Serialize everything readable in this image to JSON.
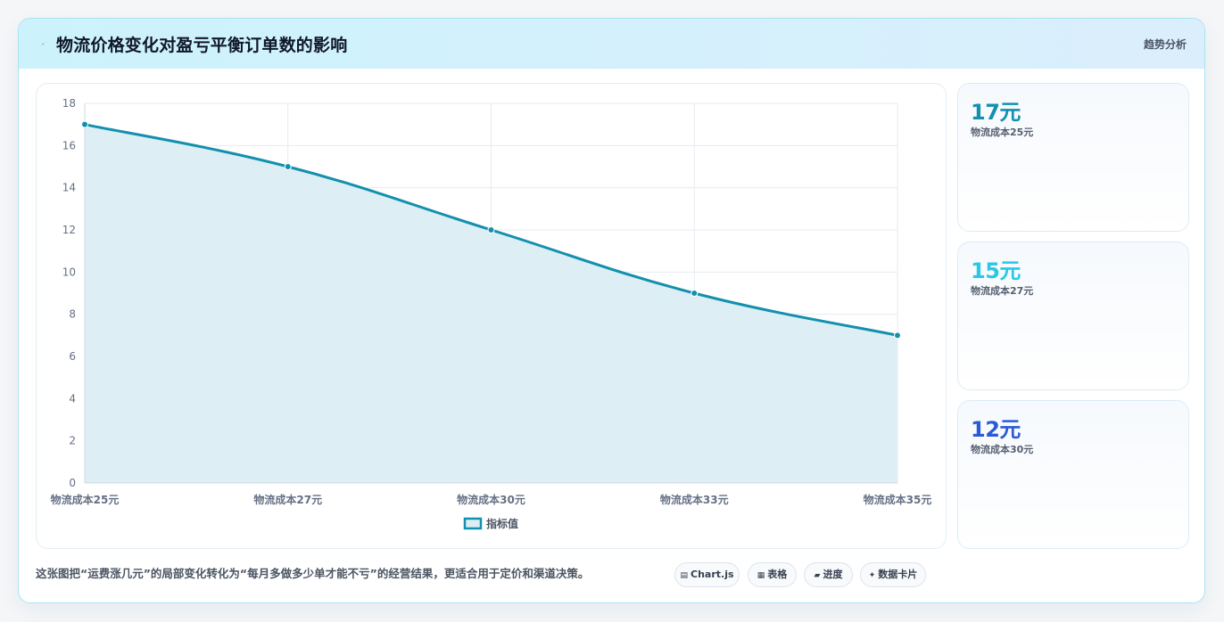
{
  "header": {
    "title": "物流价格变化对盈亏平衡订单数的影响",
    "icon": "lightning-icon",
    "right_label": "趋势分析"
  },
  "colors": {
    "line": "#1390ad",
    "fill": "#dcedf4",
    "grid": "#e6ebf0",
    "axis_text": "#667085",
    "card1_value": "#1390ad",
    "card2_value": "#27c9e6",
    "card3_value": "#2a5bd7"
  },
  "chart_data": {
    "type": "line",
    "fill": true,
    "categories": [
      "物流成本25元",
      "物流成本27元",
      "物流成本30元",
      "物流成本33元",
      "物流成本35元"
    ],
    "series": [
      {
        "name": "指标值",
        "values": [
          17,
          15,
          12,
          9,
          7
        ]
      }
    ],
    "ylim": [
      0,
      18
    ],
    "yticks": [
      0,
      2,
      4,
      6,
      8,
      10,
      12,
      14,
      16,
      18
    ],
    "grid": true,
    "legend_position": "bottom"
  },
  "side_cards": [
    {
      "value": "17元",
      "label": "物流成本25元"
    },
    {
      "value": "15元",
      "label": "物流成本27元"
    },
    {
      "value": "12元",
      "label": "物流成本30元"
    }
  ],
  "footer": {
    "description": "这张图把“运费涨几元”的局部变化转化为“每月多做多少单才能不亏”的经营结果，更适合用于定价和渠道决策。",
    "chips": [
      {
        "icon": "▤",
        "icon_name": "chart-icon",
        "label": "Chart.js"
      },
      {
        "icon": "▦",
        "icon_name": "table-icon",
        "label": "表格"
      },
      {
        "icon": "▰",
        "icon_name": "progress-icon",
        "label": "进度"
      },
      {
        "icon": "✦",
        "icon_name": "sparkle-icon",
        "label": "数据卡片"
      }
    ]
  }
}
